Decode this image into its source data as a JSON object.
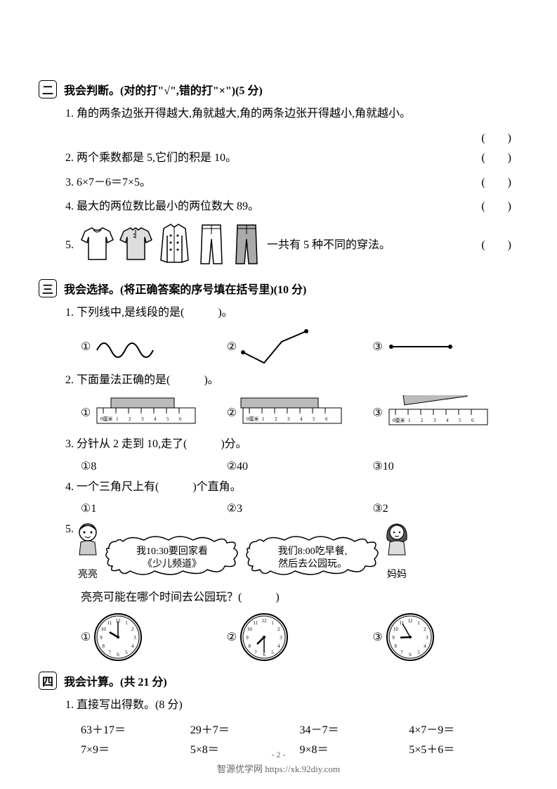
{
  "section2": {
    "badge": "二",
    "title": "我会判断。(对的打\"√\",错的打\"×\")(5 分)",
    "q1": {
      "num": "1.",
      "text": "角的两条边张开得越大,角就越大,角的两条边张开得越小,角就越小。",
      "paren": "(　　)"
    },
    "q2": {
      "num": "2.",
      "text": "两个乘数都是 5,它们的积是 10。",
      "paren": "(　　)"
    },
    "q3": {
      "num": "3.",
      "text": "6×7－6＝7×5。",
      "paren": "(　　)"
    },
    "q4": {
      "num": "4.",
      "text": "最大的两位数比最小的两位数大 89。",
      "paren": "(　　)"
    },
    "q5": {
      "num": "5.",
      "text_after": "一共有 5 种不同的穿法。",
      "paren": "(　　)"
    }
  },
  "section3": {
    "badge": "三",
    "title": "我会选择。(将正确答案的序号填在括号里)(10 分)",
    "q1": {
      "num": "1.",
      "text": "下列线中,是线段的是(　　　)。",
      "opts": {
        "a": "①",
        "b": "②",
        "c": "③"
      }
    },
    "q2": {
      "num": "2.",
      "text": "下面量法正确的是(　　　)。",
      "opts": {
        "a": "①",
        "b": "②",
        "c": "③"
      }
    },
    "q3": {
      "num": "3.",
      "text": "分针从 2 走到 10,走了(　　　)分。",
      "opts": {
        "a": "①8",
        "b": "②40",
        "c": "③10"
      }
    },
    "q4": {
      "num": "4.",
      "text": "一个三角尺上有(　　　)个直角。",
      "opts": {
        "a": "①1",
        "b": "②3",
        "c": "③2"
      }
    },
    "q5": {
      "num": "5.",
      "bubble1_l1": "我10:30要回家看",
      "bubble1_l2": "《少儿频道》",
      "bubble2_l1": "我们8:00吃早餐,",
      "bubble2_l2": "然后去公园玩。",
      "name1": "亮亮",
      "name2": "妈妈",
      "question": "亮亮可能在哪个时间去公园玩？(　　　)",
      "opts": {
        "a": "①",
        "b": "②",
        "c": "③"
      }
    }
  },
  "section4": {
    "badge": "四",
    "title": "我会计算。(共 21 分)",
    "q1": {
      "num": "1.",
      "text": "直接写出得数。(8 分)",
      "row1": {
        "a": "63＋17＝",
        "b": "29＋7＝",
        "c": "34－7＝",
        "d": "4×7－9＝"
      },
      "row2": {
        "a": "7×9＝",
        "b": "5×8＝",
        "c": "9×8＝",
        "d": "5×5＋6＝"
      }
    }
  },
  "footer": {
    "page": "- 2 -",
    "site": "智源优学网 https://xk.92diy.com"
  },
  "clocks": {
    "c1": {
      "h": 10,
      "m": 0
    },
    "c2": {
      "h": 7,
      "m": 30
    },
    "c3": {
      "h": 8,
      "m": 55
    }
  },
  "colors": {
    "stroke": "#000000",
    "fill": "#ffffff",
    "grey": "#bbbbbb"
  }
}
